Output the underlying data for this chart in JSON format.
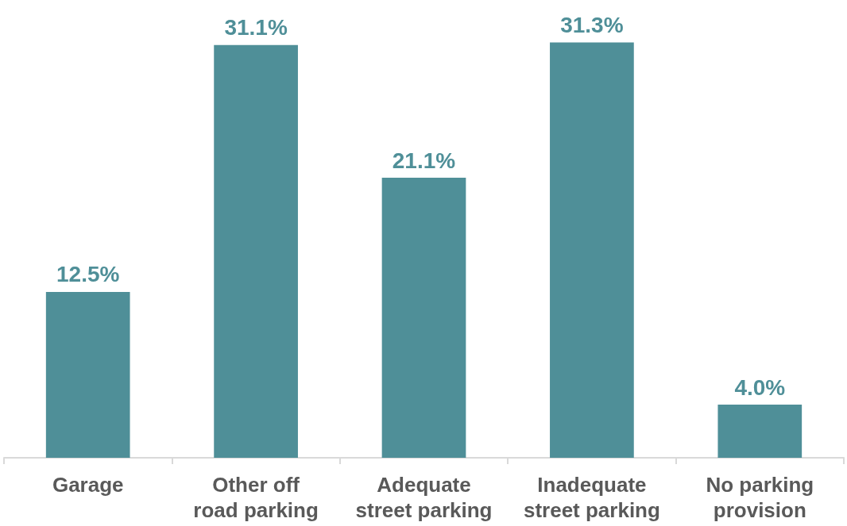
{
  "chart_data": {
    "type": "bar",
    "categories": [
      "Garage",
      "Other off\nroad parking",
      "Adequate\nstreet parking",
      "Inadequate\nstreet parking",
      "No parking\nprovision"
    ],
    "values": [
      12.5,
      31.1,
      21.1,
      31.3,
      4.0
    ],
    "value_labels": [
      "12.5%",
      "31.1%",
      "21.1%",
      "31.3%",
      "4.0%"
    ],
    "color": "#4f8f98"
  }
}
